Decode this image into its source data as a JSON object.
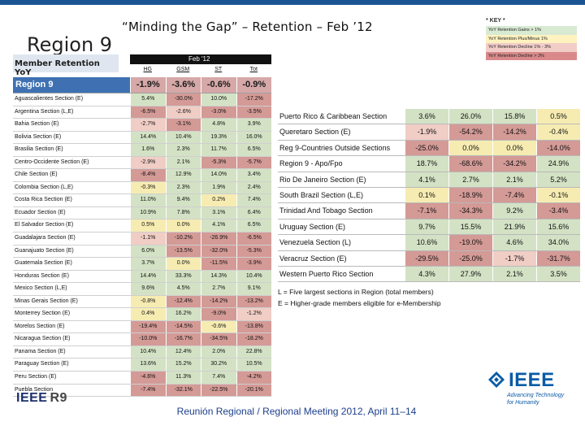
{
  "slide": {
    "region_heading": "Region 9",
    "title": "“Minding the Gap” – Retention – Feb  ’12",
    "footer": "Reunión Regional / Regional Meeting 2012, April 11–14"
  },
  "key": {
    "title": "* KEY *",
    "items": [
      {
        "label": "YoY Retention Gains > 1%",
        "color": "#d9ead3"
      },
      {
        "label": "YoY Retention Plus/Minus 1%",
        "color": "#fff2bf"
      },
      {
        "label": "YoY Retention Decline 1% - 3%",
        "color": "#f2cdc8"
      },
      {
        "label": "YoY Retention Decline > 3%",
        "color": "#d9898a"
      }
    ]
  },
  "colors": {
    "green": "#d3e2c4",
    "yellow": "#f6ecb2",
    "pink": "#f0cdc5",
    "red": "#d49a96",
    "region_blue": "#3f71b2"
  },
  "left_table": {
    "title": "Member Retention YoY",
    "period": "Feb '12",
    "columns": [
      "HG",
      "GSM",
      "ST",
      "Tot"
    ],
    "region": {
      "name": "Region 9",
      "values": [
        "-1.9%",
        "-3.6%",
        "-0.6%",
        "-0.9%"
      ]
    },
    "rows": [
      {
        "name": "Aguascalientes Section (E)",
        "values": [
          "5.4%",
          "-30.0%",
          "10.0%",
          "-17.2%"
        ],
        "shades": [
          "green",
          "red",
          "green",
          "red"
        ]
      },
      {
        "name": "Argentina Section (L,E)",
        "values": [
          "-6.5%",
          "-2.6%",
          "-3.0%",
          "-3.5%"
        ],
        "shades": [
          "red",
          "pink",
          "red",
          "red"
        ]
      },
      {
        "name": "Bahia Section (E)",
        "values": [
          "-2.7%",
          "-3.1%",
          "4.8%",
          "3.9%"
        ],
        "shades": [
          "pink",
          "red",
          "green",
          "green"
        ]
      },
      {
        "name": "Bolivia Section (E)",
        "values": [
          "14.4%",
          "10.4%",
          "19.3%",
          "16.0%"
        ],
        "shades": [
          "green",
          "green",
          "green",
          "green"
        ]
      },
      {
        "name": "Brasilia Section (E)",
        "values": [
          "1.6%",
          "2.3%",
          "11.7%",
          "6.5%"
        ],
        "shades": [
          "green",
          "green",
          "green",
          "green"
        ]
      },
      {
        "name": "Centro-Occidente Section (E)",
        "values": [
          "-2.9%",
          "2.1%",
          "-5.3%",
          "-5.7%"
        ],
        "shades": [
          "pink",
          "green",
          "red",
          "red"
        ]
      },
      {
        "name": "Chile Section (E)",
        "values": [
          "-8.4%",
          "12.9%",
          "14.0%",
          "3.4%"
        ],
        "shades": [
          "red",
          "green",
          "green",
          "green"
        ]
      },
      {
        "name": "Colombia Section (L,E)",
        "values": [
          "-0.3%",
          "2.3%",
          "1.9%",
          "2.4%"
        ],
        "shades": [
          "yellow",
          "green",
          "green",
          "green"
        ]
      },
      {
        "name": "Costa Rica Section (E)",
        "values": [
          "11.0%",
          "9.4%",
          "0.2%",
          "7.4%"
        ],
        "shades": [
          "green",
          "green",
          "yellow",
          "green"
        ]
      },
      {
        "name": "Ecuador Section (E)",
        "values": [
          "10.9%",
          "7.8%",
          "3.1%",
          "6.4%"
        ],
        "shades": [
          "green",
          "green",
          "green",
          "green"
        ]
      },
      {
        "name": "El Salvador Section (E)",
        "values": [
          "0.5%",
          "0.0%",
          "4.1%",
          "6.5%"
        ],
        "shades": [
          "yellow",
          "yellow",
          "green",
          "green"
        ]
      },
      {
        "name": "Guadalajara Section (E)",
        "values": [
          "-1.1%",
          "-10.2%",
          "-26.9%",
          "-6.5%"
        ],
        "shades": [
          "pink",
          "red",
          "red",
          "red"
        ]
      },
      {
        "name": "Guanajuato Section (E)",
        "values": [
          "6.0%",
          "-13.5%",
          "-32.0%",
          "-5.3%"
        ],
        "shades": [
          "green",
          "red",
          "red",
          "red"
        ]
      },
      {
        "name": "Guatemala Section (E)",
        "values": [
          "3.7%",
          "0.0%",
          "-11.5%",
          "-3.9%"
        ],
        "shades": [
          "green",
          "yellow",
          "red",
          "red"
        ]
      },
      {
        "name": "Honduras Section (E)",
        "values": [
          "14.4%",
          "33.3%",
          "14.3%",
          "10.4%"
        ],
        "shades": [
          "green",
          "green",
          "green",
          "green"
        ]
      },
      {
        "name": "Mexico Section (L,E)",
        "values": [
          "9.6%",
          "4.5%",
          "2.7%",
          "9.1%"
        ],
        "shades": [
          "green",
          "green",
          "green",
          "green"
        ]
      },
      {
        "name": "Minas Gerais Section (E)",
        "values": [
          "-0.8%",
          "-12.4%",
          "-14.2%",
          "-13.2%"
        ],
        "shades": [
          "yellow",
          "red",
          "red",
          "red"
        ]
      },
      {
        "name": "Monterrey Section (E)",
        "values": [
          "0.4%",
          "16.2%",
          "-9.0%",
          "-1.2%"
        ],
        "shades": [
          "yellow",
          "green",
          "red",
          "pink"
        ]
      },
      {
        "name": "Morelos Section (E)",
        "values": [
          "-19.4%",
          "-14.5%",
          "-0.6%",
          "-13.8%"
        ],
        "shades": [
          "red",
          "red",
          "yellow",
          "red"
        ]
      },
      {
        "name": "Nicaragua Section (E)",
        "values": [
          "-10.0%",
          "-16.7%",
          "-34.5%",
          "-18.2%"
        ],
        "shades": [
          "red",
          "red",
          "red",
          "red"
        ]
      },
      {
        "name": "Panama Section (E)",
        "values": [
          "10.4%",
          "12.4%",
          "2.0%",
          "22.8%"
        ],
        "shades": [
          "green",
          "green",
          "green",
          "green"
        ]
      },
      {
        "name": "Paraguay Section (E)",
        "values": [
          "13.6%",
          "15.2%",
          "30.2%",
          "10.5%"
        ],
        "shades": [
          "green",
          "green",
          "green",
          "green"
        ]
      },
      {
        "name": "Peru Section (E)",
        "values": [
          "-4.6%",
          "11.3%",
          "7.4%",
          "-4.2%"
        ],
        "shades": [
          "red",
          "green",
          "green",
          "red"
        ]
      },
      {
        "name": "Puebla Section",
        "values": [
          "-7.4%",
          "-32.1%",
          "-22.5%",
          "-20.1%"
        ],
        "shades": [
          "red",
          "red",
          "red",
          "red"
        ]
      }
    ]
  },
  "right_table": {
    "rows": [
      {
        "name": "Puerto Rico & Caribbean Section",
        "values": [
          "3.6%",
          "26.0%",
          "15.8%",
          "0.5%"
        ],
        "shades": [
          "green",
          "green",
          "green",
          "yellow"
        ]
      },
      {
        "name": "Queretaro Section (E)",
        "values": [
          "-1.9%",
          "-54.2%",
          "-14.2%",
          "-0.4%"
        ],
        "shades": [
          "pink",
          "red",
          "red",
          "yellow"
        ]
      },
      {
        "name": "Reg 9-Countries Outside Sections",
        "values": [
          "-25.0%",
          "0.0%",
          "0.0%",
          "-14.0%"
        ],
        "shades": [
          "red",
          "yellow",
          "yellow",
          "red"
        ]
      },
      {
        "name": "Region 9 - Apo/Fpo",
        "values": [
          "18.7%",
          "-68.6%",
          "-34.2%",
          "24.9%"
        ],
        "shades": [
          "green",
          "red",
          "red",
          "green"
        ]
      },
      {
        "name": "Rio De Janeiro Section (E)",
        "values": [
          "4.1%",
          "2.7%",
          "2.1%",
          "5.2%"
        ],
        "shades": [
          "green",
          "green",
          "green",
          "green"
        ]
      },
      {
        "name": "South Brazil Section (L,E)",
        "values": [
          "0.1%",
          "-18.9%",
          "-7.4%",
          "-0.1%"
        ],
        "shades": [
          "yellow",
          "red",
          "red",
          "yellow"
        ]
      },
      {
        "name": "Trinidad And Tobago Section",
        "values": [
          "-7.1%",
          "-34.3%",
          "9.2%",
          "-3.4%"
        ],
        "shades": [
          "red",
          "red",
          "green",
          "red"
        ]
      },
      {
        "name": "Uruguay Section (E)",
        "values": [
          "9.7%",
          "15.5%",
          "21.9%",
          "15.6%"
        ],
        "shades": [
          "green",
          "green",
          "green",
          "green"
        ]
      },
      {
        "name": "Venezuela Section (L)",
        "values": [
          "10.6%",
          "-19.0%",
          "4.6%",
          "34.0%"
        ],
        "shades": [
          "green",
          "red",
          "green",
          "green"
        ]
      },
      {
        "name": "Veracruz Section (E)",
        "values": [
          "-29.5%",
          "-25.0%",
          "-1.7%",
          "-31.7%"
        ],
        "shades": [
          "red",
          "red",
          "pink",
          "red"
        ]
      },
      {
        "name": "Western Puerto Rico Section",
        "values": [
          "4.3%",
          "27.9%",
          "2.1%",
          "3.5%"
        ],
        "shades": [
          "green",
          "green",
          "green",
          "green"
        ]
      }
    ],
    "notes": [
      "L = Five largest sections in Region (total members)",
      "E = Higher-grade members eligible for e-Membership"
    ]
  },
  "logos": {
    "ieee_r9_left": "IEEE",
    "ieee_r9_right": "R9",
    "ieee_word": "IEEE",
    "ieee_tagline_1": "Advancing Technology",
    "ieee_tagline_2": "for Humanity"
  }
}
